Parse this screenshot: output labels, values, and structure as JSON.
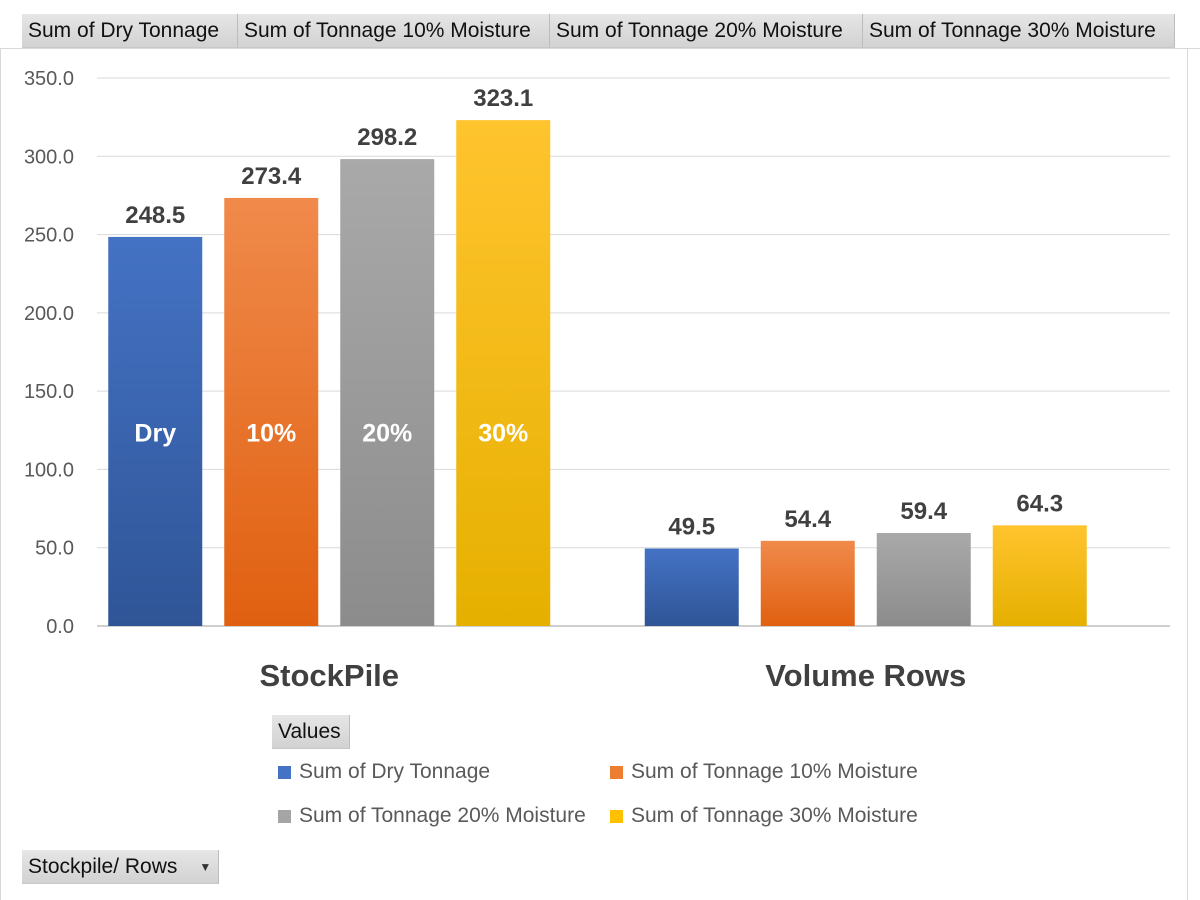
{
  "value_buttons": [
    "Sum of Dry Tonnage",
    "Sum of Tonnage 10% Moisture",
    "Sum of Tonnage 20% Moisture",
    "Sum of Tonnage 30% Moisture"
  ],
  "legend_title": "Values",
  "row_field": {
    "label": "Stockpile/ Rows",
    "icon": "chevron-down-icon"
  },
  "chart_data": {
    "type": "bar",
    "title": "",
    "xlabel": "",
    "ylabel": "",
    "categories": [
      "StockPile",
      "Volume Rows"
    ],
    "series": [
      {
        "name": "Sum of Dry Tonnage",
        "values": [
          248.5,
          49.5
        ],
        "color": "#4472C4",
        "color_dark": "#2F5597",
        "inside_label": "Dry"
      },
      {
        "name": "Sum of Tonnage 10% Moisture",
        "values": [
          273.4,
          54.4
        ],
        "color": "#F08A4B",
        "color_dark": "#E06010",
        "inside_label": "10%"
      },
      {
        "name": "Sum of Tonnage 20% Moisture",
        "values": [
          298.2,
          59.4
        ],
        "color": "#A9A9A9",
        "color_dark": "#8C8C8C",
        "inside_label": "20%"
      },
      {
        "name": "Sum of Tonnage 30% Moisture",
        "values": [
          323.1,
          64.3
        ],
        "color": "#FFC42E",
        "color_dark": "#E6B000",
        "inside_label": "30%"
      }
    ],
    "y_ticks": [
      "0.0",
      "50.0",
      "100.0",
      "150.0",
      "200.0",
      "250.0",
      "300.0",
      "350.0"
    ],
    "ylim": [
      0,
      350
    ],
    "grid": true,
    "legend_position": "bottom"
  }
}
